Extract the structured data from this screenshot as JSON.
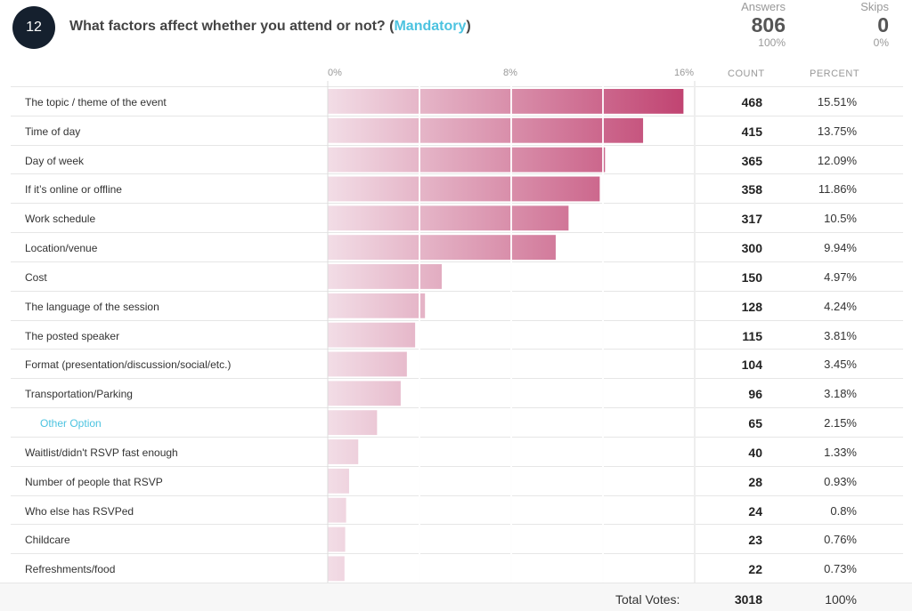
{
  "question": {
    "number": "12",
    "title_prefix": "What factors affect whether you attend or not? (",
    "mandatory": "Mandatory",
    "title_suffix": ")"
  },
  "stats": {
    "answers_label": "Answers",
    "answers_value": "806",
    "answers_pct": "100%",
    "skips_label": "Skips",
    "skips_value": "0",
    "skips_pct": "0%"
  },
  "columns": {
    "count": "COUNT",
    "percent": "PERCENT"
  },
  "total": {
    "label": "Total Votes:",
    "count": "3018",
    "percent": "100%"
  },
  "colors": {
    "bar_light": "#f2dde6",
    "bar_dark": "#bf3f6e",
    "accent": "#4cc3e0"
  },
  "chart_data": {
    "type": "bar",
    "orientation": "horizontal",
    "xlim": [
      0,
      16
    ],
    "xticks": [
      0,
      4,
      8,
      12,
      16
    ],
    "tick_labels": [
      "0%",
      "",
      "8%",
      "",
      "16%"
    ],
    "categories": [
      "The topic / theme of the event",
      "Time of day",
      "Day of week",
      "If it’s online or offline",
      "Work schedule",
      "Location/venue",
      "Cost",
      "The language of the session",
      "The posted speaker",
      "Format (presentation/discussion/social/etc.)",
      "Transportation/Parking",
      "Other Option",
      "Waitlist/didn't RSVP fast enough",
      "Number of people that RSVP",
      "Who else has RSVPed",
      "Childcare",
      "Refreshments/food"
    ],
    "counts": [
      468,
      415,
      365,
      358,
      317,
      300,
      150,
      128,
      115,
      104,
      96,
      65,
      40,
      28,
      24,
      23,
      22
    ],
    "percent_labels": [
      "15.51%",
      "13.75%",
      "12.09%",
      "11.86%",
      "10.5%",
      "9.94%",
      "4.97%",
      "4.24%",
      "3.81%",
      "3.45%",
      "3.18%",
      "2.15%",
      "1.33%",
      "0.93%",
      "0.8%",
      "0.76%",
      "0.73%"
    ],
    "values": [
      15.51,
      13.75,
      12.09,
      11.86,
      10.5,
      9.94,
      4.97,
      4.24,
      3.81,
      3.45,
      3.18,
      2.15,
      1.33,
      0.93,
      0.8,
      0.76,
      0.73
    ],
    "other_index": 11
  }
}
